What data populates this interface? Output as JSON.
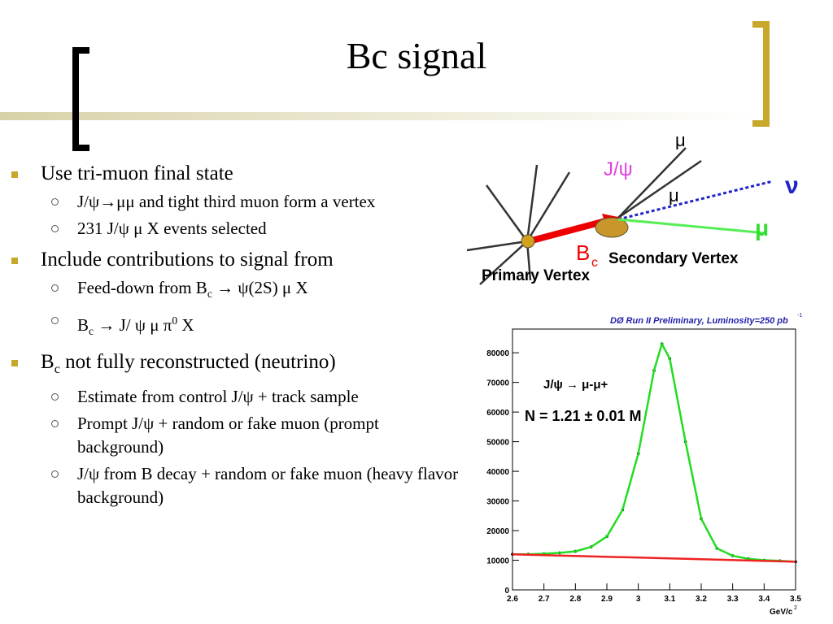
{
  "slide": {
    "title": "Bc signal",
    "bullets": [
      {
        "text": [
          "Use tri-muon final state"
        ],
        "children": [
          [
            "J/ψ→μμ and tight third muon form a vertex"
          ],
          [
            "231 J/ψ μ X events selected"
          ]
        ]
      },
      {
        "text": [
          "Include contributions to signal from"
        ],
        "children": [
          [
            "Feed-down from B",
            {
              "sub": "c"
            },
            " → ψ(2S) μ X"
          ],
          [
            "B",
            {
              "sub": "c"
            },
            " → J/ ψ μ π",
            {
              "sup": "0"
            },
            " X"
          ]
        ]
      },
      {
        "text": [
          "B",
          {
            "sub": "c"
          },
          " not fully reconstructed (neutrino)"
        ],
        "children": [
          [
            "Estimate from control J/ψ + track sample"
          ],
          [
            "Prompt J/ψ + random or fake muon (prompt background)"
          ],
          [
            "J/ψ from B decay + random or fake muon (heavy flavor background)"
          ]
        ]
      }
    ]
  },
  "diagram": {
    "mu_top": "μ",
    "jpsi": "J/ψ",
    "mu_mid": "μ",
    "nu": "ν",
    "mu_green": "μ",
    "bc": "B",
    "bc_sub": "c",
    "secondary": "Secondary Vertex",
    "primary": "Primary Vertex"
  },
  "chart_data": {
    "type": "line",
    "title": "DØ Run II Preliminary, Luminosity=250 pb",
    "title_sup": "-1",
    "annotations": [
      "J/ψ → μ-μ+",
      "N = 1.21 ± 0.01 M"
    ],
    "x_label": "GeV/c",
    "x_label_sup": "2",
    "xlim": [
      2.6,
      3.5
    ],
    "ylim": [
      0,
      88000
    ],
    "xticks": [
      2.6,
      2.7,
      2.8,
      2.9,
      3,
      3.1,
      3.2,
      3.3,
      3.4,
      3.5
    ],
    "yticks": [
      0,
      10000,
      20000,
      30000,
      40000,
      50000,
      60000,
      70000,
      80000
    ],
    "series": [
      {
        "name": "data",
        "color": "#000000",
        "x": [
          2.6,
          2.65,
          2.7,
          2.75,
          2.8,
          2.85,
          2.9,
          2.95,
          3.0,
          3.05,
          3.075,
          3.1,
          3.15,
          3.2,
          3.25,
          3.3,
          3.35,
          3.4,
          3.45,
          3.5
        ],
        "values": [
          12000,
          12000,
          12200,
          12500,
          13000,
          14500,
          18000,
          27000,
          46000,
          74000,
          83000,
          78000,
          50000,
          24000,
          14000,
          11500,
          10500,
          10000,
          9800,
          9500
        ]
      },
      {
        "name": "fit",
        "color": "#22dd22",
        "x": [
          2.6,
          2.65,
          2.7,
          2.75,
          2.8,
          2.85,
          2.9,
          2.95,
          3.0,
          3.05,
          3.075,
          3.1,
          3.15,
          3.2,
          3.25,
          3.3,
          3.35,
          3.4,
          3.45,
          3.5
        ],
        "values": [
          12000,
          12000,
          12200,
          12500,
          13000,
          14500,
          18000,
          27000,
          46000,
          74000,
          83000,
          78000,
          50000,
          24000,
          14000,
          11500,
          10500,
          10000,
          9800,
          9500
        ]
      },
      {
        "name": "background",
        "color": "#ee2222",
        "x": [
          2.6,
          3.5
        ],
        "values": [
          12000,
          9500
        ]
      }
    ]
  }
}
